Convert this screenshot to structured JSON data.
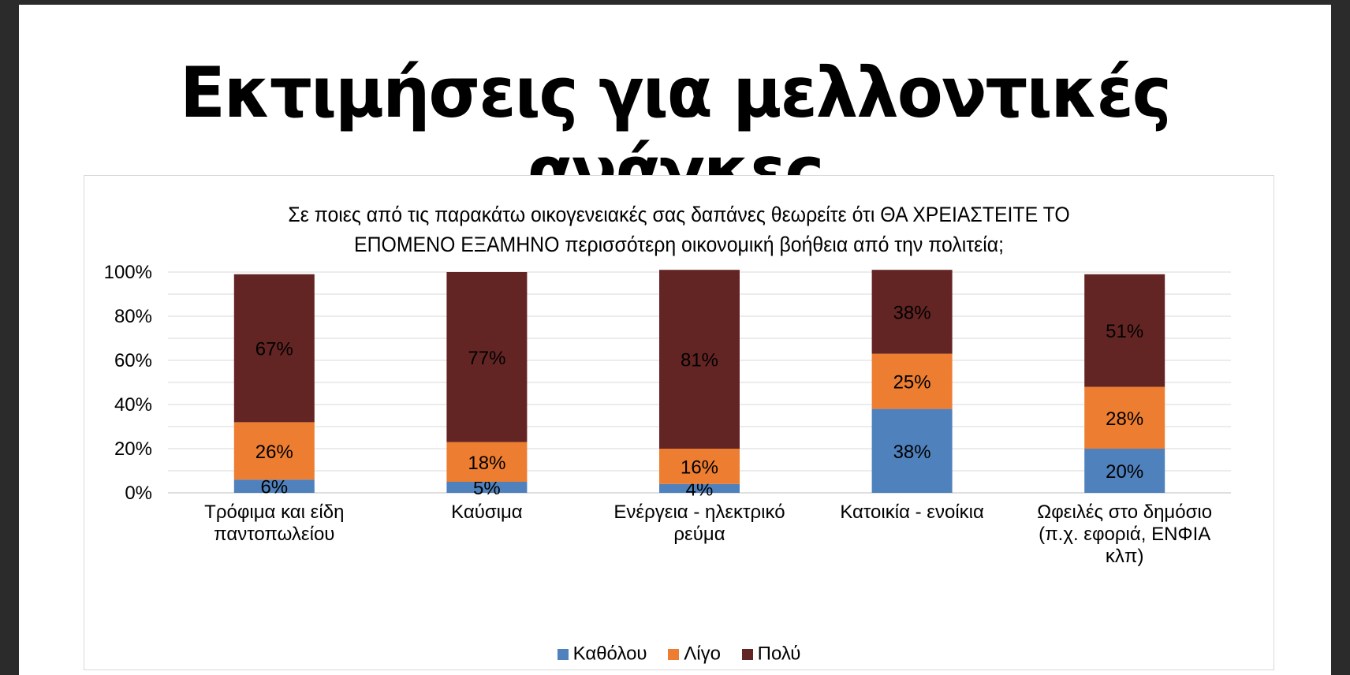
{
  "slide": {
    "title": "Εκτιμήσεις για μελλοντικές ανάγκες"
  },
  "chart_data": {
    "type": "bar",
    "stacked": true,
    "title_lines": [
      "Σε ποιες από τις παρακάτω οικογενειακές σας δαπάνες θεωρείτε ότι ΘΑ ΧΡΕΙΑΣΤΕΙΤΕ ΤΟ",
      "ΕΠΟΜΕΝΟ ΕΞΑΜΗΝΟ  περισσότερη οικονομική βοήθεια από την πολιτεία;"
    ],
    "categories": [
      [
        "Τρόφιμα και είδη",
        "παντοπωλείου"
      ],
      [
        "Καύσιμα"
      ],
      [
        "Ενέργεια - ηλεκτρικό",
        "ρεύμα"
      ],
      [
        "Κατοικία - ενοίκια"
      ],
      [
        "Ωφειλές στο δημόσιο",
        "(π.χ. εφοριά, ΕΝΦΙΑ",
        "κλπ)"
      ]
    ],
    "series": [
      {
        "name": "Καθόλου",
        "color": "#4f81bd",
        "values": [
          6,
          5,
          4,
          38,
          20
        ],
        "labels": [
          "6%",
          "5%",
          "4%",
          "38%",
          "20%"
        ]
      },
      {
        "name": "Λίγο",
        "color": "#ed7d31",
        "values": [
          26,
          18,
          16,
          25,
          28
        ],
        "labels": [
          "26%",
          "18%",
          "16%",
          "25%",
          "28%"
        ]
      },
      {
        "name": "Πολύ",
        "color": "#632523",
        "values": [
          67,
          77,
          81,
          38,
          51
        ],
        "labels": [
          "67%",
          "77%",
          "81%",
          "38%",
          "51%"
        ]
      }
    ],
    "y_ticks": [
      "0%",
      "20%",
      "40%",
      "60%",
      "80%",
      "100%"
    ],
    "ylim": [
      0,
      100
    ],
    "grid": true,
    "legend_position": "bottom"
  }
}
